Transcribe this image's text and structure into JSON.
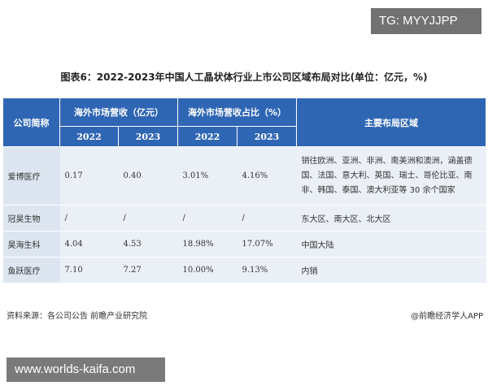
{
  "overlay_tag": "TG: MYYJJPP",
  "title": "图表6：2022-2023年中国人工晶状体行业上市公司区域布局对比(单位：亿元，%)",
  "table": {
    "headers": {
      "company": "公司简称",
      "revenue": "海外市场营收（亿元）",
      "share": "海外市场营收占比（%）",
      "regions": "主要布局区域",
      "years": [
        "2022",
        "2023",
        "2022",
        "2023"
      ]
    },
    "rows": [
      {
        "company": "爱博医疗",
        "rev2022": "0.17",
        "rev2023": "0.40",
        "share2022": "3.01%",
        "share2023": "4.16%",
        "regions": "销往欧洲、亚洲、非洲、南美洲和澳洲，涵盖德国、法国、意大利、英国、瑞士、哥伦比亚、南非、韩国、泰国、澳大利亚等 30 余个国家"
      },
      {
        "company": "冠昊生物",
        "rev2022": "/",
        "rev2023": "/",
        "share2022": "/",
        "share2023": "/",
        "regions": "东大区、南大区、北大区"
      },
      {
        "company": "昊海生科",
        "rev2022": "4.04",
        "rev2023": "4.53",
        "share2022": "18.98%",
        "share2023": "17.07%",
        "regions": "中国大陆"
      },
      {
        "company": "鱼跃医疗",
        "rev2022": "7.10",
        "rev2023": "7.27",
        "share2022": "10.00%",
        "share2023": "9.13%",
        "regions": "内销"
      }
    ]
  },
  "footer": {
    "source": "资料来源：各公司公告 前瞻产业研究院",
    "brand": "@前瞻经济学人APP"
  },
  "bottom_watermark": "www.worlds-kaifa.com"
}
